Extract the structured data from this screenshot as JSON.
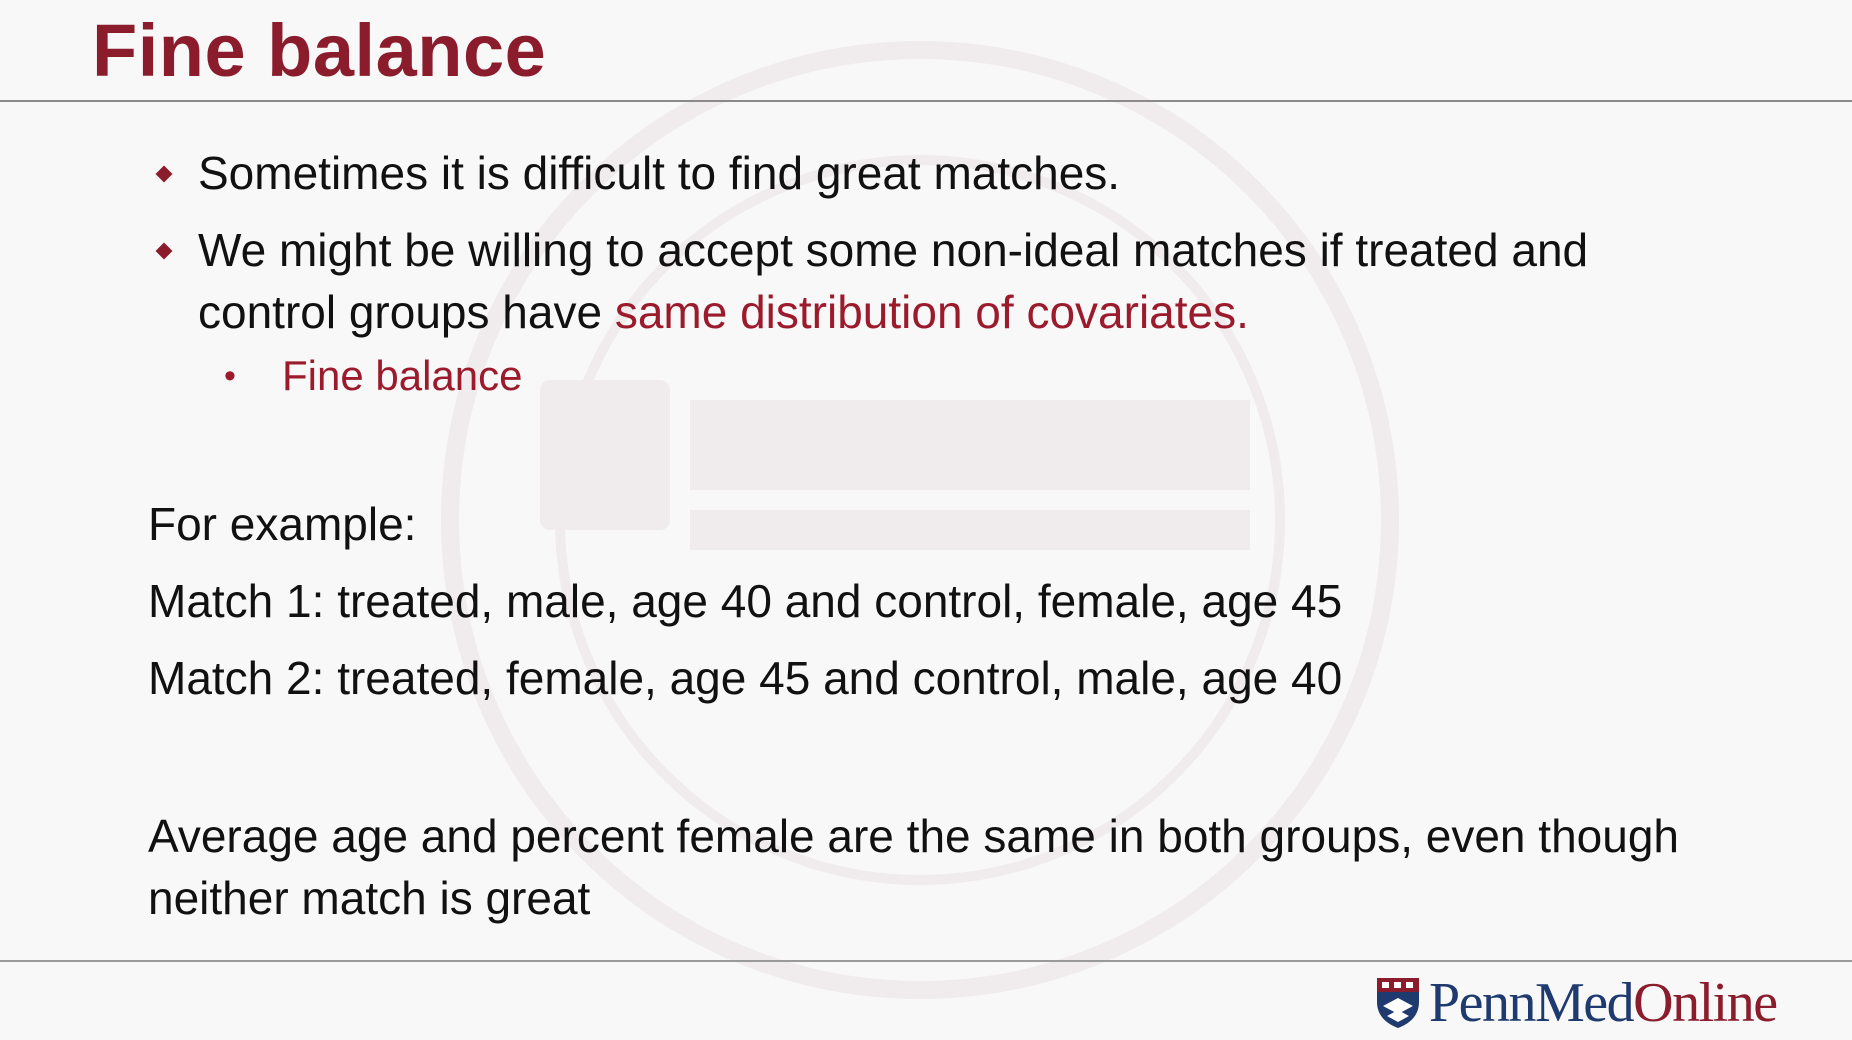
{
  "slide": {
    "title": "Fine balance",
    "bullets": [
      {
        "text": "Sometimes it is difficult to find great matches."
      },
      {
        "text_before": "We might be willing to accept some non-ideal matches if treated and control groups have ",
        "text_accent": "same distribution of covariates."
      }
    ],
    "sub_bullet": "Fine balance",
    "example_heading": "For example:",
    "match_lines": [
      "Match 1: treated, male, age 40 and control, female, age 45",
      "Match 2: treated, female, age 45 and control, male, age 40"
    ],
    "summary": "Average age and percent female are the same in both groups, even though neither match is great"
  },
  "logo": {
    "part1": "Penn",
    "part2": "Med",
    "part3": "Online"
  },
  "colors": {
    "title": "#8b1c2c",
    "accent": "#9b1b2c",
    "logo_blue": "#1f3a6e"
  }
}
